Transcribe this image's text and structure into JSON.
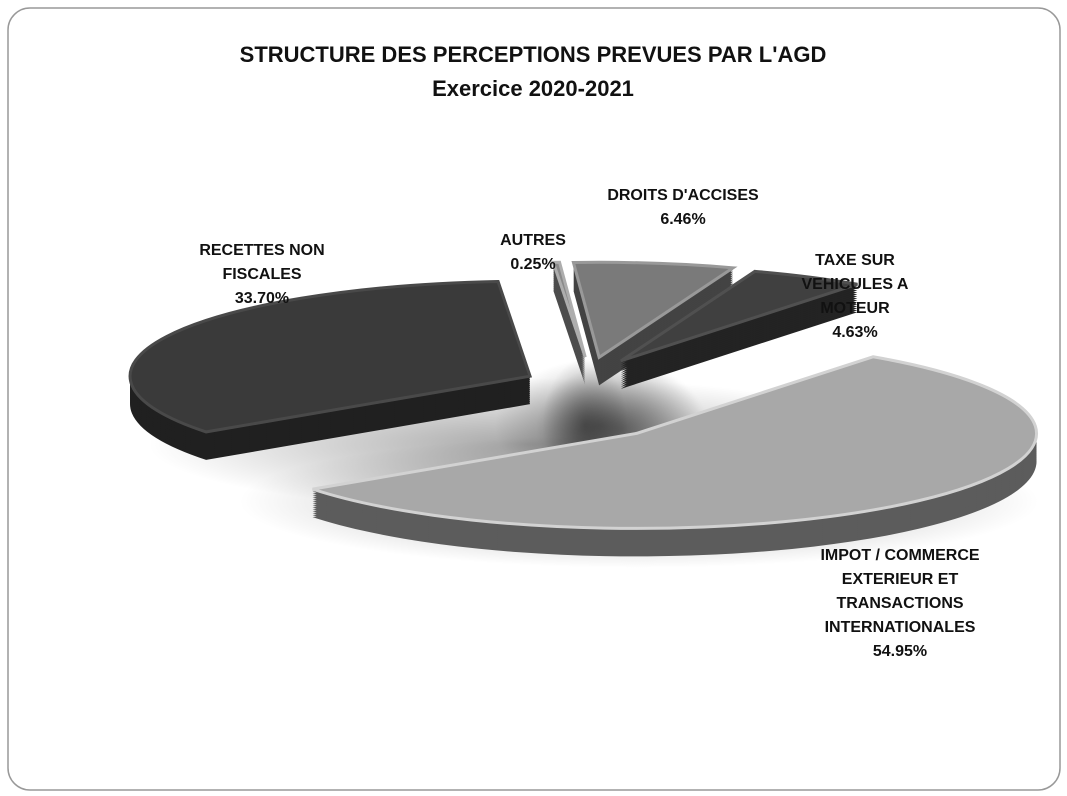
{
  "chart_data": {
    "type": "pie3d",
    "title": "STRUCTURE DES PERCEPTIONS PREVUES PAR L'AGD",
    "subtitle": "Exercice 2020-2021",
    "categories": [
      "AUTRES",
      "DROITS D'ACCISES",
      "TAXE SUR VEHICULES A MOTEUR",
      "IMPOT / COMMERCE EXTERIEUR ET TRANSACTIONS INTERNATIONALES",
      "RECETTES NON FISCALES"
    ],
    "values": [
      0.25,
      6.46,
      4.63,
      54.95,
      33.7
    ],
    "value_labels": [
      "0.25%",
      "6.46%",
      "4.63%",
      "54.95%",
      "33.70%"
    ],
    "colors": [
      "#8a8a8a",
      "#7a7a7a",
      "#404040",
      "#a8a8a8",
      "#3a3a3a"
    ]
  }
}
